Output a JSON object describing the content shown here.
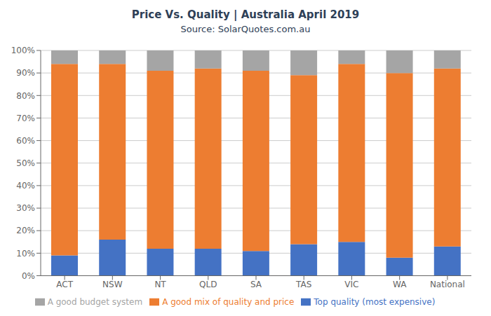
{
  "chart_data": {
    "type": "bar",
    "title": "Price Vs. Quality | Australia April 2019",
    "subtitle": "Source: SolarQuotes.com.au",
    "categories": [
      "ACT",
      "NSW",
      "NT",
      "QLD",
      "SA",
      "TAS",
      "VIC",
      "WA",
      "National"
    ],
    "series": [
      {
        "name": "Top quality (most expensive)",
        "color": "#4472C4",
        "values": [
          9,
          16,
          12,
          12,
          11,
          14,
          15,
          8,
          13
        ]
      },
      {
        "name": "A good mix of quality and price",
        "color": "#ED7D31",
        "values": [
          85,
          78,
          79,
          80,
          80,
          75,
          79,
          82,
          79
        ]
      },
      {
        "name": "A good budget system",
        "color": "#A5A5A5",
        "values": [
          6,
          6,
          9,
          8,
          9,
          11,
          6,
          10,
          8
        ]
      }
    ],
    "stacked": true,
    "ylim": [
      0,
      100
    ],
    "yticks": [
      {
        "value": 0,
        "label": "0%"
      },
      {
        "value": 10,
        "label": "10%"
      },
      {
        "value": 20,
        "label": "20%"
      },
      {
        "value": 30,
        "label": "30%"
      },
      {
        "value": 40,
        "label": "40%"
      },
      {
        "value": 50,
        "label": "50%"
      },
      {
        "value": 60,
        "label": "60%"
      },
      {
        "value": 70,
        "label": "70%"
      },
      {
        "value": 80,
        "label": "80%"
      },
      {
        "value": 90,
        "label": "90%"
      },
      {
        "value": 100,
        "label": "100%"
      }
    ],
    "grid": true,
    "legend": "bottom"
  }
}
